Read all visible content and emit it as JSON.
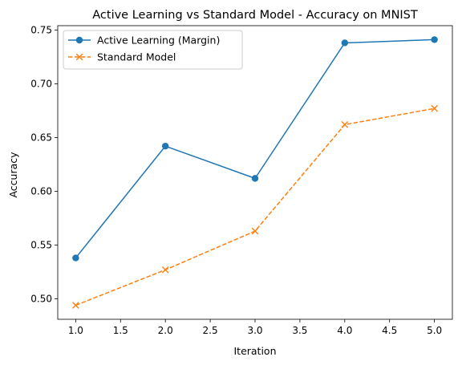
{
  "chart_data": {
    "type": "line",
    "title": "Active Learning vs Standard Model - Accuracy on MNIST",
    "xlabel": "Iteration",
    "ylabel": "Accuracy",
    "x": [
      1,
      2,
      3,
      4,
      5
    ],
    "xlim": [
      0.8,
      5.2
    ],
    "ylim": [
      0.481,
      0.754
    ],
    "xticks": [
      1.0,
      1.5,
      2.0,
      2.5,
      3.0,
      3.5,
      4.0,
      4.5,
      5.0
    ],
    "xtick_labels": [
      "1.0",
      "1.5",
      "2.0",
      "2.5",
      "3.0",
      "3.5",
      "4.0",
      "4.5",
      "5.0"
    ],
    "yticks": [
      0.5,
      0.55,
      0.6,
      0.65,
      0.7,
      0.75
    ],
    "ytick_labels": [
      "0.50",
      "0.55",
      "0.60",
      "0.65",
      "0.70",
      "0.75"
    ],
    "grid": false,
    "legend_position": "top-left",
    "series": [
      {
        "name": "Active Learning (Margin)",
        "values": [
          0.538,
          0.642,
          0.612,
          0.738,
          0.741
        ],
        "color": "#1f77b4",
        "line_style": "solid",
        "marker": "circle"
      },
      {
        "name": "Standard Model",
        "values": [
          0.494,
          0.527,
          0.563,
          0.662,
          0.677
        ],
        "color": "#ff7f0e",
        "line_style": "dashed",
        "marker": "x"
      }
    ]
  }
}
